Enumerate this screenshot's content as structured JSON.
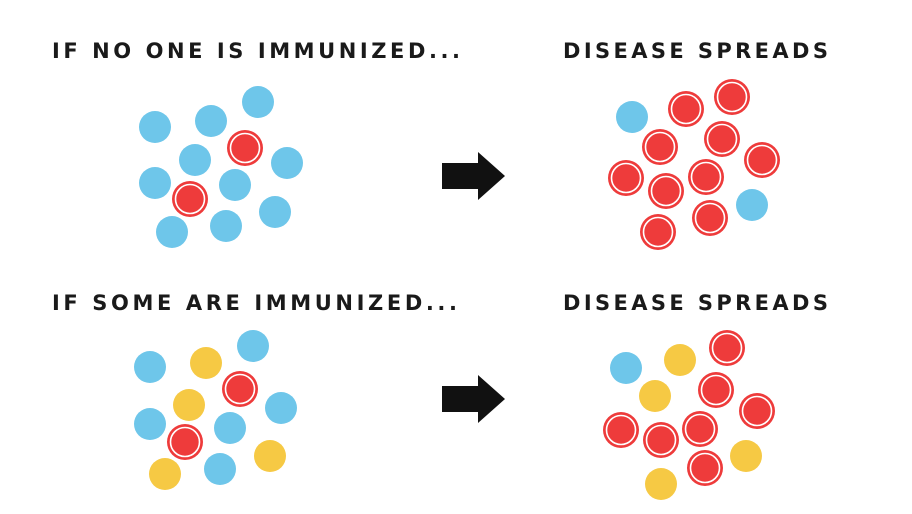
{
  "rows": [
    {
      "before": "IF NO ONE IS IMMUNIZED...",
      "after": "DISEASE SPREADS"
    },
    {
      "before": "IF SOME ARE IMMUNIZED...",
      "after": "DISEASE SPREADS"
    }
  ]
}
